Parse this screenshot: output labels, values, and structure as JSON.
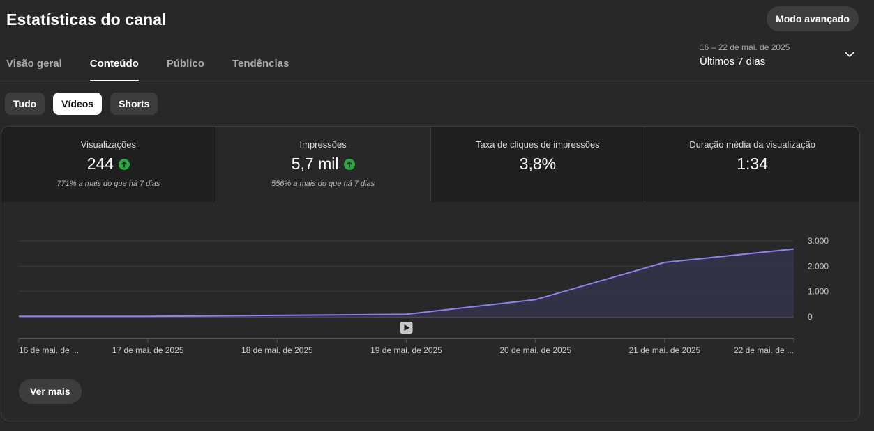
{
  "header": {
    "title": "Estatísticas do canal",
    "advanced_button": "Modo avançado"
  },
  "tabs": [
    {
      "label": "Visão geral",
      "active": false
    },
    {
      "label": "Conteúdo",
      "active": true
    },
    {
      "label": "Público",
      "active": false
    },
    {
      "label": "Tendências",
      "active": false
    }
  ],
  "date_range": {
    "range": "16 – 22 de mai. de 2025",
    "label": "Últimos 7 dias",
    "icon": "chevron-down-icon"
  },
  "filters": [
    {
      "label": "Tudo",
      "active": false
    },
    {
      "label": "Vídeos",
      "active": true
    },
    {
      "label": "Shorts",
      "active": false
    }
  ],
  "metrics": [
    {
      "label": "Visualizações",
      "value": "244",
      "trend": "up",
      "comparison": "771% a mais do que há 7 dias",
      "selected": false
    },
    {
      "label": "Impressões",
      "value": "5,7 mil",
      "trend": "up",
      "comparison": "556% a mais do que há 7 dias",
      "selected": true
    },
    {
      "label": "Taxa de cliques de impressões",
      "value": "3,8%",
      "trend": "",
      "comparison": "",
      "selected": false
    },
    {
      "label": "Duração média da visualização",
      "value": "1:34",
      "trend": "",
      "comparison": "",
      "selected": false
    }
  ],
  "colors": {
    "line": "#8b83f5",
    "area": "#35334a",
    "trend_up": "#2ba640"
  },
  "chart_data": {
    "type": "area",
    "categories": [
      "16 de mai. de ...",
      "17 de mai. de 2025",
      "18 de mai. de 2025",
      "19 de mai. de 2025",
      "20 de mai. de 2025",
      "21 de mai. de 2025",
      "22 de mai. de ..."
    ],
    "values": [
      20,
      20,
      60,
      100,
      680,
      2150,
      2680
    ],
    "ylim": [
      0,
      3000
    ],
    "yticks": [
      0,
      1000,
      2000,
      3000
    ],
    "ytick_labels": [
      "0",
      "1.000",
      "2.000",
      "3.000"
    ],
    "grid": true,
    "annotation_icon": "video-marker-icon",
    "annotation_category": "19 de mai. de 2025"
  },
  "see_more": "Ver mais"
}
